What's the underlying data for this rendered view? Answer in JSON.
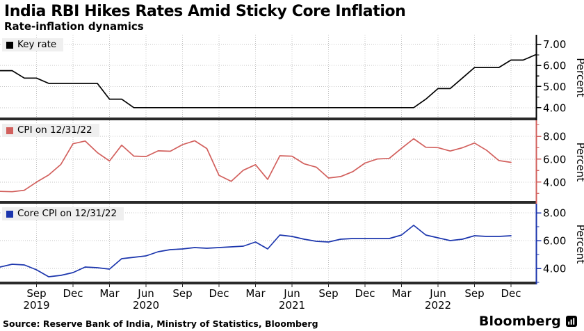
{
  "header": {
    "title": "India RBI Hikes Rates Amid Sticky Core Inflation",
    "subtitle": "Rate-inflation dynamics"
  },
  "footer": {
    "source": "Source: Reserve Bank of India, Ministry of Statistics, Bloomberg",
    "brand": "Bloomberg"
  },
  "colors": {
    "key_rate": "#000000",
    "cpi": "#d2605d",
    "core_cpi": "#1b35ad",
    "grid": "#c4c4c4",
    "axis_bar": "#2a2a2a",
    "legend_bg": "#efefef",
    "text": "#000000"
  },
  "chart_data": {
    "type": "line",
    "x": {
      "start": "2019-06",
      "step": "1 month",
      "points_per_month": 1
    },
    "x_ticks": [
      {
        "index": 3,
        "month": "Sep",
        "year": "2019"
      },
      {
        "index": 6,
        "month": "Dec"
      },
      {
        "index": 9,
        "month": "Mar"
      },
      {
        "index": 12,
        "month": "Jun",
        "year": "2020"
      },
      {
        "index": 15,
        "month": "Sep"
      },
      {
        "index": 18,
        "month": "Dec"
      },
      {
        "index": 21,
        "month": "Mar"
      },
      {
        "index": 24,
        "month": "Jun",
        "year": "2021"
      },
      {
        "index": 27,
        "month": "Sep"
      },
      {
        "index": 30,
        "month": "Dec"
      },
      {
        "index": 33,
        "month": "Mar"
      },
      {
        "index": 36,
        "month": "Jun",
        "year": "2022"
      },
      {
        "index": 39,
        "month": "Sep"
      },
      {
        "index": 42,
        "month": "Dec"
      }
    ],
    "panels": [
      {
        "id": "key-rate",
        "legend": "Key rate",
        "color": "#000000",
        "ylabel": "Percent",
        "ylim": [
          3.4,
          7.45
        ],
        "yticks": [
          {
            "v": 4,
            "label": "4.00"
          },
          {
            "v": 5,
            "label": "5.00"
          },
          {
            "v": 6,
            "label": "6.00"
          },
          {
            "v": 7,
            "label": "7.00"
          }
        ],
        "minor_ticks": [
          4.5,
          5.5,
          6.5
        ],
        "values": [
          5.75,
          5.75,
          5.4,
          5.4,
          5.15,
          5.15,
          5.15,
          5.15,
          5.15,
          4.4,
          4.4,
          4,
          4,
          4,
          4,
          4,
          4,
          4,
          4,
          4,
          4,
          4,
          4,
          4,
          4,
          4,
          4,
          4,
          4,
          4,
          4,
          4,
          4,
          4,
          4,
          4.4,
          4.9,
          4.9,
          5.4,
          5.9,
          5.9,
          5.9,
          6.25,
          6.25,
          6.5
        ]
      },
      {
        "id": "cpi",
        "legend": "CPI on 12/31/22",
        "color": "#d2605d",
        "ylabel": "Percent",
        "ylim": [
          2.1,
          9.4
        ],
        "yticks": [
          {
            "v": 4,
            "label": "4.00"
          },
          {
            "v": 6,
            "label": "6.00"
          },
          {
            "v": 8,
            "label": "8.00"
          }
        ],
        "minor_ticks": [
          3,
          5,
          7,
          9
        ],
        "values": [
          3.18,
          3.15,
          3.28,
          3.99,
          4.62,
          5.54,
          7.35,
          7.59,
          6.58,
          5.84,
          7.22,
          6.27,
          6.23,
          6.73,
          6.69,
          7.27,
          7.61,
          6.93,
          4.59,
          4.06,
          5.03,
          5.52,
          4.23,
          6.3,
          6.26,
          5.59,
          5.3,
          4.35,
          4.48,
          4.91,
          5.66,
          6.01,
          6.07,
          6.95,
          7.79,
          7.04,
          7.01,
          6.71,
          7,
          7.41,
          6.77,
          5.88,
          5.72
        ]
      },
      {
        "id": "core-cpi",
        "legend": "Core CPI on 12/31/22",
        "color": "#1b35ad",
        "ylabel": "Percent",
        "ylim": [
          2.85,
          8.65
        ],
        "yticks": [
          {
            "v": 4,
            "label": "4.00"
          },
          {
            "v": 6,
            "label": "6.00"
          },
          {
            "v": 8,
            "label": "8.00"
          }
        ],
        "minor_ticks": [
          3,
          5,
          7
        ],
        "values": [
          4.1,
          4.3,
          4.25,
          3.9,
          3.4,
          3.5,
          3.7,
          4.1,
          4.05,
          3.95,
          4.7,
          4.8,
          4.9,
          5.2,
          5.35,
          5.4,
          5.5,
          5.45,
          5.5,
          5.55,
          5.6,
          5.9,
          5.4,
          6.4,
          6.3,
          6.1,
          5.95,
          5.9,
          6.1,
          6.15,
          6.15,
          6.15,
          6.15,
          6.4,
          7.1,
          6.4,
          6.2,
          6,
          6.1,
          6.35,
          6.3,
          6.3,
          6.35
        ]
      }
    ]
  }
}
